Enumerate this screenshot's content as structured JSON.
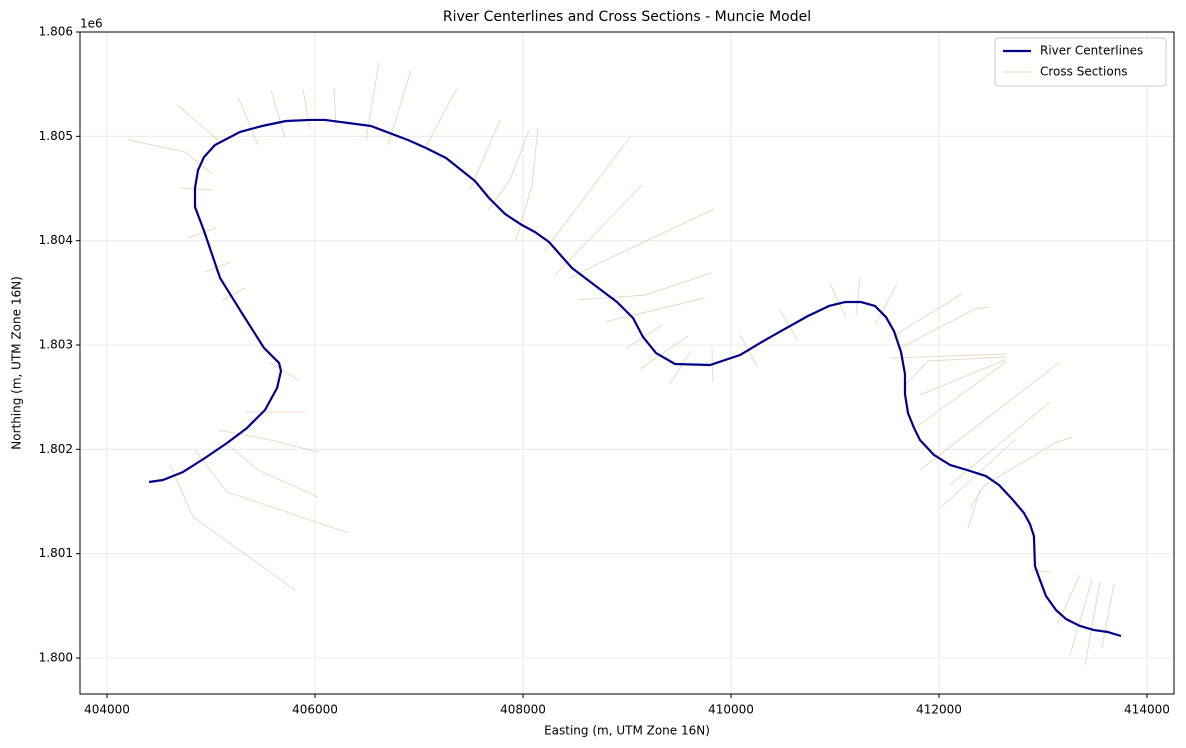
{
  "chart_data": {
    "type": "line",
    "title": "River Centerlines and Cross Sections - Muncie Model",
    "x_label": "Easting (m, UTM Zone 16N)",
    "y_label": "Northing (m, UTM Zone 16N)",
    "y_offset_label": "1e6",
    "xlim": [
      403740,
      414260
    ],
    "ylim": [
      1799655,
      1806000
    ],
    "xticks": [
      404000,
      406000,
      408000,
      410000,
      412000,
      414000
    ],
    "yticks": [
      {
        "value": 1800000,
        "label": "1.800"
      },
      {
        "value": 1801000,
        "label": "1.801"
      },
      {
        "value": 1802000,
        "label": "1.802"
      },
      {
        "value": 1803000,
        "label": "1.803"
      },
      {
        "value": 1804000,
        "label": "1.804"
      },
      {
        "value": 1805000,
        "label": "1.805"
      },
      {
        "value": 1806000,
        "label": "1.806"
      }
    ],
    "grid": true,
    "legend": "upper right",
    "series": [
      {
        "name": "River Centerlines",
        "color": "#00008b",
        "x": [
          404404,
          404538,
          404731,
          404942,
          405154,
          405346,
          405519,
          405635,
          405673,
          405654,
          405510,
          405308,
          405087,
          404933,
          404846,
          404846,
          404875,
          404933,
          405038,
          405279,
          405490,
          405721,
          405952,
          406096,
          406538,
          406894,
          407067,
          407260,
          407538,
          407673,
          407827,
          407990,
          408115,
          408250,
          408471,
          408712,
          408904,
          409058,
          409154,
          409279,
          409462,
          409798,
          410087,
          410279,
          410481,
          410740,
          410942,
          411096,
          411250,
          411385,
          411490,
          411567,
          411635,
          411673,
          411673,
          411702,
          411760,
          411817,
          411952,
          412106,
          412269,
          412452,
          412577,
          412712,
          412817,
          412875,
          412913,
          412923,
          412971,
          413029,
          413125,
          413221,
          413356,
          413490,
          413625,
          413750
        ],
        "y": [
          1801687,
          1801706,
          1801783,
          1801917,
          1802061,
          1802205,
          1802377,
          1802588,
          1802751,
          1802828,
          1802971,
          1803288,
          1803642,
          1804093,
          1804323,
          1804505,
          1804677,
          1804802,
          1804917,
          1805042,
          1805099,
          1805147,
          1805157,
          1805157,
          1805099,
          1804965,
          1804888,
          1804792,
          1804572,
          1804409,
          1804256,
          1804150,
          1804083,
          1803987,
          1803738,
          1803556,
          1803412,
          1803259,
          1803077,
          1802923,
          1802818,
          1802808,
          1802904,
          1803019,
          1803134,
          1803278,
          1803374,
          1803412,
          1803412,
          1803374,
          1803268,
          1803134,
          1802933,
          1802722,
          1802530,
          1802348,
          1802205,
          1802090,
          1801946,
          1801850,
          1801802,
          1801744,
          1801658,
          1801514,
          1801390,
          1801284,
          1801169,
          1800882,
          1800748,
          1800594,
          1800460,
          1800374,
          1800307,
          1800268,
          1800249,
          1800211
        ]
      },
      {
        "name": "Cross Sections",
        "color": "#d2b48c",
        "x": [
          404202,
          404750,
          405010,
          null,
          404673,
          405067,
          null,
          404702,
          405010,
          null,
          404779,
          405048,
          null,
          404942,
          405192,
          null,
          405115,
          405327,
          null,
          405260,
          405452,
          null,
          405577,
          405712,
          null,
          405885,
          405952,
          null,
          406183,
          406202,
          null,
          406615,
          406490,
          null,
          406923,
          406702,
          null,
          407365,
          407058,
          null,
          407779,
          407490,
          null,
          408058,
          407875,
          407663,
          null,
          408144,
          408087,
          407933,
          null,
          409029,
          408212,
          null,
          409144,
          408308,
          null,
          409837,
          408837,
          408452,
          null,
          409808,
          409173,
          408529,
          null,
          409750,
          408788,
          null,
          409337,
          408981,
          null,
          409587,
          409125,
          null,
          409606,
          409414,
          null,
          409817,
          409827,
          null,
          410087,
          410250,
          null,
          410471,
          410644,
          null,
          410952,
          411106,
          null,
          411240,
          411202,
          null,
          411596,
          411385,
          null,
          412221,
          411577,
          null,
          412481,
          412346,
          411625,
          null,
          412644,
          411529,
          null,
          412644,
          411894,
          411673,
          null,
          412635,
          411817,
          null,
          412644,
          411769,
          null,
          413163,
          411817,
          null,
          413067,
          412106,
          null,
          412731,
          412010,
          null,
          413279,
          413115,
          412442,
          412298,
          null,
          412394,
          412279,
          null,
          412875,
          413086,
          null,
          413356,
          413135,
          null,
          413471,
          413260,
          null,
          413548,
          413404,
          null,
          413683,
          413567,
          null,
          405327,
          405904,
          null,
          405067,
          405567,
          406029,
          null,
          405163,
          405452,
          406029,
          null,
          404846,
          405154,
          406327,
          null,
          404606,
          404827,
          405808,
          null,
          405837,
          405567
        ],
        "y": [
          1804965,
          1804850,
          1804639,
          null,
          1805300,
          1804965,
          null,
          1804505,
          1804486,
          null,
          1804026,
          1804122,
          null,
          1803700,
          1803796,
          null,
          1803432,
          1803547,
          null,
          1805377,
          1804917,
          null,
          1805444,
          1804984,
          null,
          1805444,
          1805061,
          null,
          1805463,
          1805080,
          null,
          1805713,
          1804965,
          null,
          1805636,
          1804917,
          null,
          1805463,
          1804888,
          null,
          1805157,
          1804486,
          null,
          1805061,
          1804582,
          1804294,
          null,
          1805080,
          1804534,
          1804006,
          null,
          1804994,
          1803910,
          null,
          1804534,
          1803671,
          null,
          1804304,
          1803834,
          1803642,
          null,
          1803690,
          1803479,
          1803432,
          null,
          1803451,
          1803221,
          null,
          1803192,
          1802962,
          null,
          1803087,
          1802770,
          null,
          1802933,
          1802626,
          null,
          1802971,
          1802646,
          null,
          1803096,
          1802799,
          null,
          1803336,
          1803038,
          null,
          1803594,
          1803259,
          null,
          1803642,
          1803278,
          null,
          1803585,
          1803192,
          null,
          1803489,
          1803096,
          null,
          1803364,
          1803345,
          1802971,
          null,
          1802914,
          1802875,
          null,
          1802885,
          1802847,
          1802617,
          null,
          1802856,
          1802521,
          null,
          1802837,
          1802205,
          null,
          1802837,
          1801802,
          null,
          1802454,
          1801658,
          null,
          1802090,
          1801438,
          null,
          1802118,
          1802061,
          1801658,
          1801438,
          null,
          1801610,
          1801246,
          null,
          1800843,
          1800824,
          null,
          1800795,
          1800316,
          null,
          1800748,
          1800029,
          null,
          1800728,
          1799933,
          null,
          1800709,
          1800096,
          null,
          1802358,
          1802358,
          null,
          1802185,
          1802090,
          1801975,
          null,
          1802042,
          1801802,
          1801543,
          null,
          1801994,
          1801591,
          1801198,
          null,
          1801850,
          1801351,
          1800652,
          null,
          1802665,
          1802837
        ]
      }
    ]
  }
}
